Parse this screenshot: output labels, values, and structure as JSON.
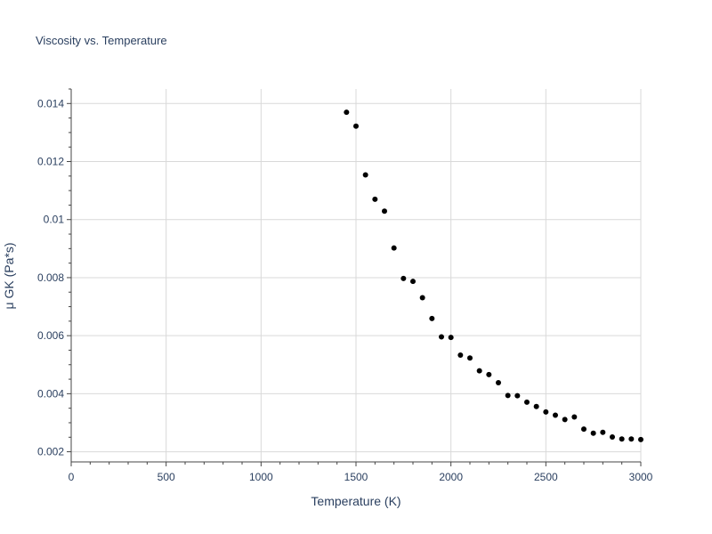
{
  "chart_data": {
    "type": "scatter",
    "title": "Viscosity vs. Temperature",
    "xlabel": "Temperature (K)",
    "ylabel": "μ GK (Pa*s)",
    "xlim": [
      0,
      3000
    ],
    "ylim": [
      0.00165,
      0.0145
    ],
    "x_ticks": [
      0,
      500,
      1000,
      1500,
      2000,
      2500,
      3000
    ],
    "x_tick_labels": [
      "0",
      "500",
      "1000",
      "1500",
      "2000",
      "2500",
      "3000"
    ],
    "y_ticks": [
      0.002,
      0.004,
      0.006,
      0.008,
      0.01,
      0.012,
      0.014
    ],
    "y_tick_labels": [
      "0.002",
      "0.004",
      "0.006",
      "0.008",
      "0.01",
      "0.012",
      "0.014"
    ],
    "grid": true,
    "marker_color": "#000000",
    "x": [
      1450,
      1500,
      1550,
      1600,
      1650,
      1700,
      1750,
      1800,
      1850,
      1900,
      1950,
      2000,
      2050,
      2100,
      2150,
      2200,
      2250,
      2300,
      2350,
      2400,
      2450,
      2500,
      2550,
      2600,
      2650,
      2700,
      2750,
      2800,
      2850,
      2900,
      2950,
      3000
    ],
    "y": [
      0.0137,
      0.01322,
      0.01154,
      0.0107,
      0.01029,
      0.00902,
      0.00797,
      0.00787,
      0.00731,
      0.00659,
      0.00596,
      0.00594,
      0.00533,
      0.00523,
      0.00479,
      0.00466,
      0.00438,
      0.00394,
      0.00393,
      0.00371,
      0.00356,
      0.00337,
      0.00326,
      0.00311,
      0.0032,
      0.00278,
      0.00264,
      0.00267,
      0.00251,
      0.00244,
      0.00244,
      0.00242
    ]
  }
}
